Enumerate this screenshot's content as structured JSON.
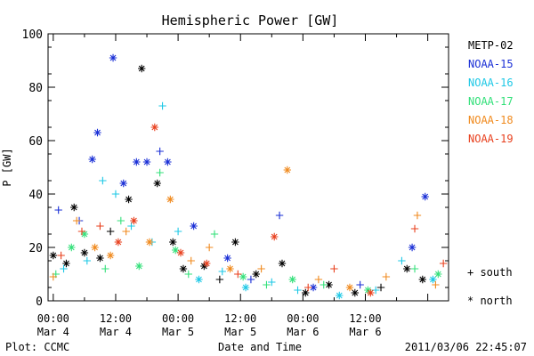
{
  "chart_data": {
    "type": "scatter",
    "title": "Hemispheric Power [GW]",
    "ylabel": "P [GW]",
    "xlabel": "Date and Time",
    "ylim": [
      0,
      100
    ],
    "yticks": [
      0,
      20,
      40,
      60,
      80,
      100
    ],
    "xlim": [
      "2011-03-03 23:00",
      "2011-03-07 04:00"
    ],
    "xticks": [
      {
        "time": "00:00",
        "date": "Mar 4",
        "x": "2011-03-04 00:00"
      },
      {
        "time": "12:00",
        "date": "Mar 4",
        "x": "2011-03-04 12:00"
      },
      {
        "time": "00:00",
        "date": "Mar 5",
        "x": "2011-03-05 00:00"
      },
      {
        "time": "12:00",
        "date": "Mar 5",
        "x": "2011-03-05 12:00"
      },
      {
        "time": "00:00",
        "date": "Mar 6",
        "x": "2011-03-06 00:00"
      },
      {
        "time": "12:00",
        "date": "Mar 6",
        "x": "2011-03-06 12:00"
      }
    ],
    "legend_placement": "right",
    "symbol_legend": [
      {
        "symbol": "+",
        "label": "south"
      },
      {
        "symbol": "*",
        "label": "north"
      }
    ],
    "series": [
      {
        "name": "METP-02",
        "color": "#000000",
        "points": [
          [
            "2011-03-04 00:00",
            17,
            "*"
          ],
          [
            "2011-03-04 02:30",
            14,
            "*"
          ],
          [
            "2011-03-04 04:00",
            35,
            "*"
          ],
          [
            "2011-03-04 06:00",
            18,
            "*"
          ],
          [
            "2011-03-04 09:00",
            16,
            "*"
          ],
          [
            "2011-03-04 14:30",
            38,
            "*"
          ],
          [
            "2011-03-04 17:00",
            87,
            "*"
          ],
          [
            "2011-03-04 20:00",
            44,
            "*"
          ],
          [
            "2011-03-04 23:00",
            22,
            "*"
          ],
          [
            "2011-03-05 01:00",
            12,
            "*"
          ],
          [
            "2011-03-05 05:00",
            13,
            "*"
          ],
          [
            "2011-03-05 11:00",
            22,
            "*"
          ],
          [
            "2011-03-05 15:00",
            10,
            "*"
          ],
          [
            "2011-03-05 20:00",
            14,
            "*"
          ],
          [
            "2011-03-06 00:30",
            3,
            "*"
          ],
          [
            "2011-03-06 05:00",
            6,
            "*"
          ],
          [
            "2011-03-06 10:00",
            3,
            "*"
          ],
          [
            "2011-03-06 20:00",
            12,
            "*"
          ],
          [
            "2011-03-06 23:00",
            8,
            "*"
          ],
          [
            "2011-03-04 11:00",
            26,
            "+"
          ],
          [
            "2011-03-05 08:00",
            8,
            "+"
          ],
          [
            "2011-03-06 15:00",
            5,
            "+"
          ]
        ]
      },
      {
        "name": "NOAA-15",
        "color": "#1a2fd6",
        "points": [
          [
            "2011-03-04 01:00",
            34,
            "+"
          ],
          [
            "2011-03-04 05:00",
            30,
            "+"
          ],
          [
            "2011-03-04 07:30",
            53,
            "*"
          ],
          [
            "2011-03-04 08:30",
            63,
            "*"
          ],
          [
            "2011-03-04 11:30",
            91,
            "*"
          ],
          [
            "2011-03-04 13:30",
            44,
            "*"
          ],
          [
            "2011-03-04 16:00",
            52,
            "*"
          ],
          [
            "2011-03-04 18:00",
            52,
            "*"
          ],
          [
            "2011-03-04 20:30",
            56,
            "+"
          ],
          [
            "2011-03-04 22:00",
            52,
            "*"
          ],
          [
            "2011-03-05 03:00",
            28,
            "*"
          ],
          [
            "2011-03-05 09:30",
            16,
            "*"
          ],
          [
            "2011-03-05 14:00",
            8,
            "+"
          ],
          [
            "2011-03-05 19:30",
            32,
            "+"
          ],
          [
            "2011-03-06 02:00",
            5,
            "*"
          ],
          [
            "2011-03-06 11:00",
            6,
            "+"
          ],
          [
            "2011-03-06 21:00",
            20,
            "*"
          ],
          [
            "2011-03-06 23:30",
            39,
            "*"
          ]
        ]
      },
      {
        "name": "NOAA-16",
        "color": "#1ec8e6",
        "points": [
          [
            "2011-03-04 02:00",
            12,
            "+"
          ],
          [
            "2011-03-04 06:30",
            15,
            "+"
          ],
          [
            "2011-03-04 09:30",
            45,
            "+"
          ],
          [
            "2011-03-04 12:00",
            40,
            "+"
          ],
          [
            "2011-03-04 15:00",
            28,
            "+"
          ],
          [
            "2011-03-04 19:00",
            22,
            "+"
          ],
          [
            "2011-03-04 21:00",
            73,
            "+"
          ],
          [
            "2011-03-05 00:00",
            26,
            "+"
          ],
          [
            "2011-03-05 04:00",
            8,
            "*"
          ],
          [
            "2011-03-05 08:30",
            11,
            "+"
          ],
          [
            "2011-03-05 13:00",
            5,
            "*"
          ],
          [
            "2011-03-05 18:00",
            7,
            "+"
          ],
          [
            "2011-03-05 23:00",
            4,
            "+"
          ],
          [
            "2011-03-06 07:00",
            2,
            "*"
          ],
          [
            "2011-03-06 14:00",
            4,
            "+"
          ],
          [
            "2011-03-06 19:00",
            15,
            "+"
          ],
          [
            "2011-03-07 01:00",
            8,
            "*"
          ]
        ]
      },
      {
        "name": "NOAA-17",
        "color": "#33e07a",
        "points": [
          [
            "2011-03-04 00:30",
            10,
            "+"
          ],
          [
            "2011-03-04 03:30",
            20,
            "*"
          ],
          [
            "2011-03-04 06:00",
            25,
            "*"
          ],
          [
            "2011-03-04 10:00",
            12,
            "+"
          ],
          [
            "2011-03-04 13:00",
            30,
            "+"
          ],
          [
            "2011-03-04 16:30",
            13,
            "*"
          ],
          [
            "2011-03-04 20:30",
            48,
            "+"
          ],
          [
            "2011-03-04 23:30",
            19,
            "*"
          ],
          [
            "2011-03-05 02:00",
            10,
            "+"
          ],
          [
            "2011-03-05 07:00",
            25,
            "+"
          ],
          [
            "2011-03-05 12:30",
            9,
            "*"
          ],
          [
            "2011-03-05 17:00",
            6,
            "+"
          ],
          [
            "2011-03-05 22:00",
            8,
            "*"
          ],
          [
            "2011-03-06 04:00",
            6,
            "+"
          ],
          [
            "2011-03-06 12:30",
            4,
            "*"
          ],
          [
            "2011-03-06 21:30",
            12,
            "+"
          ],
          [
            "2011-03-07 02:00",
            10,
            "*"
          ]
        ]
      },
      {
        "name": "NOAA-18",
        "color": "#f08a1e",
        "points": [
          [
            "2011-03-04 00:00",
            9,
            "+"
          ],
          [
            "2011-03-04 04:30",
            30,
            "+"
          ],
          [
            "2011-03-04 08:00",
            20,
            "*"
          ],
          [
            "2011-03-04 11:00",
            17,
            "*"
          ],
          [
            "2011-03-04 14:00",
            26,
            "+"
          ],
          [
            "2011-03-04 18:30",
            22,
            "*"
          ],
          [
            "2011-03-04 22:30",
            38,
            "*"
          ],
          [
            "2011-03-05 02:30",
            15,
            "+"
          ],
          [
            "2011-03-05 06:00",
            20,
            "+"
          ],
          [
            "2011-03-05 10:00",
            12,
            "*"
          ],
          [
            "2011-03-05 16:00",
            12,
            "+"
          ],
          [
            "2011-03-05 21:00",
            49,
            "*"
          ],
          [
            "2011-03-06 03:00",
            8,
            "+"
          ],
          [
            "2011-03-06 09:00",
            5,
            "*"
          ],
          [
            "2011-03-06 16:00",
            9,
            "+"
          ],
          [
            "2011-03-06 22:00",
            32,
            "+"
          ],
          [
            "2011-03-07 01:30",
            6,
            "+"
          ]
        ]
      },
      {
        "name": "NOAA-19",
        "color": "#e8401e",
        "points": [
          [
            "2011-03-04 01:30",
            17,
            "+"
          ],
          [
            "2011-03-04 05:30",
            26,
            "+"
          ],
          [
            "2011-03-04 09:00",
            28,
            "+"
          ],
          [
            "2011-03-04 12:30",
            22,
            "*"
          ],
          [
            "2011-03-04 15:30",
            30,
            "*"
          ],
          [
            "2011-03-04 19:30",
            65,
            "*"
          ],
          [
            "2011-03-05 00:30",
            18,
            "*"
          ],
          [
            "2011-03-05 05:30",
            14,
            "*"
          ],
          [
            "2011-03-05 11:30",
            10,
            "+"
          ],
          [
            "2011-03-05 18:30",
            24,
            "*"
          ],
          [
            "2011-03-06 01:00",
            5,
            "+"
          ],
          [
            "2011-03-06 06:00",
            12,
            "+"
          ],
          [
            "2011-03-06 13:00",
            3,
            "*"
          ],
          [
            "2011-03-06 21:30",
            27,
            "+"
          ],
          [
            "2011-03-07 03:00",
            14,
            "+"
          ]
        ]
      }
    ]
  },
  "footer": {
    "left": "Plot: CCMC",
    "right": "2011/03/06 22:45:07"
  }
}
